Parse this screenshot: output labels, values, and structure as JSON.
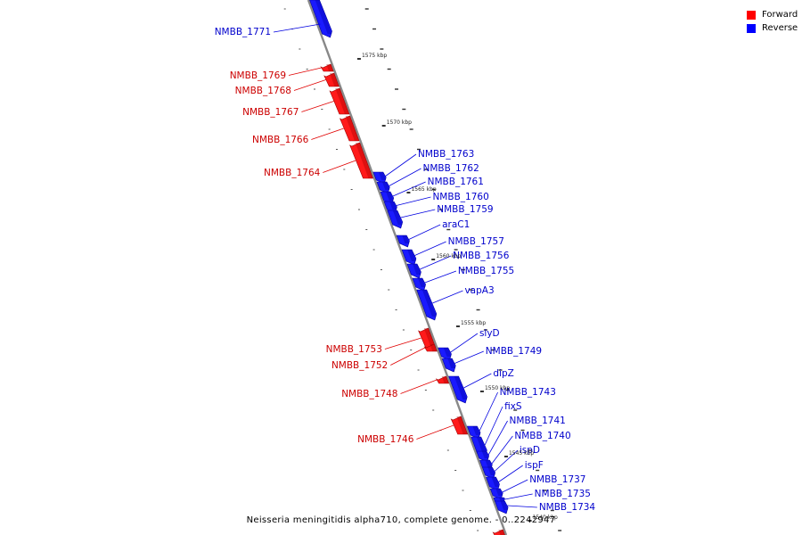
{
  "legend": {
    "forward_label": "Forward",
    "reverse_label": "Reverse",
    "forward_color": "#ff0000",
    "reverse_color": "#0000ff"
  },
  "caption": "Neisseria meningitidis alpha710, complete genome. - 0..2242947",
  "axis_ticks": [
    "1575 kbp",
    "1570 kbp",
    "1565 kbp",
    "1560 kbp",
    "1555 kbp",
    "1550 kbp",
    "1545 kbp",
    "1540 kbp"
  ],
  "forward_genes": [
    "NMBB_1769",
    "NMBB_1768",
    "NMBB_1767",
    "NMBB_1766",
    "NMBB_1764",
    "NMBB_1753",
    "NMBB_1752",
    "NMBB_1748",
    "NMBB_1746"
  ],
  "reverse_genes": [
    "NMBB_1771",
    "NMBB_1763",
    "NMBB_1762",
    "NMBB_1761",
    "NMBB_1760",
    "NMBB_1759",
    "araC1",
    "NMBB_1757",
    "NMBB_1756",
    "NMBB_1755",
    "vapA3",
    "slyD",
    "NMBB_1749",
    "dipZ",
    "NMBB_1743",
    "fixS",
    "NMBB_1741",
    "NMBB_1740",
    "ispD",
    "ispF",
    "NMBB_1737",
    "NMBB_1735",
    "NMBB_1734"
  ]
}
